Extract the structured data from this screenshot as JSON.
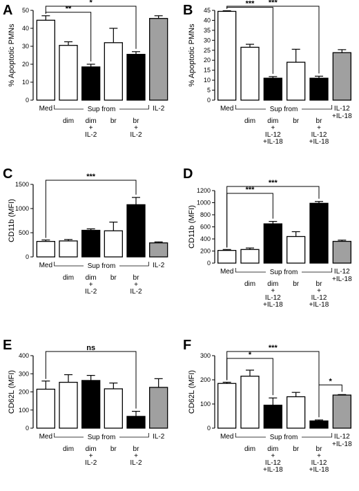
{
  "colors": {
    "white": "#ffffff",
    "black": "#000000",
    "gray": "#a0a0a0"
  },
  "chart_data": [
    {
      "type": "bar",
      "panel": "A",
      "ylabel": "% Apoptotic PMNs",
      "ylim": [
        0,
        50
      ],
      "yticks": [
        0,
        10,
        20,
        30,
        40,
        50
      ],
      "values": [
        44.5,
        30.5,
        18.5,
        32,
        25.5,
        45.5
      ],
      "errors": [
        2.5,
        2.0,
        1.5,
        8.0,
        1.5,
        1.5
      ],
      "fills": [
        "white",
        "white",
        "black",
        "white",
        "black",
        "gray"
      ],
      "labels": {
        "med": "Med",
        "sup": "Sup from",
        "end": [
          "IL-2"
        ],
        "sub": [
          [
            "dim"
          ],
          [
            "dim",
            "+",
            "IL-2"
          ],
          [
            "br"
          ],
          [
            "br",
            "+",
            "IL-2"
          ]
        ]
      },
      "brackets": [
        {
          "from": 0,
          "to": 2,
          "label": "**"
        },
        {
          "from": 0,
          "to": 4,
          "label": "*"
        }
      ]
    },
    {
      "type": "bar",
      "panel": "B",
      "ylabel": "% Apoptotic PMNs",
      "ylim": [
        0,
        45
      ],
      "yticks": [
        0,
        5,
        10,
        15,
        20,
        25,
        30,
        35,
        40,
        45
      ],
      "values": [
        44.5,
        26.5,
        11,
        19,
        11,
        23.8
      ],
      "errors": [
        0.3,
        1.5,
        0.8,
        6.5,
        1.0,
        1.5
      ],
      "fills": [
        "white",
        "white",
        "black",
        "white",
        "black",
        "gray"
      ],
      "labels": {
        "med": "Med",
        "sup": "Sup from",
        "end": [
          "IL-12",
          "+IL-18"
        ],
        "sub": [
          [
            "dim"
          ],
          [
            "dim",
            "+",
            "IL-12",
            "+IL-18"
          ],
          [
            "br"
          ],
          [
            "br",
            "+",
            "IL-12",
            "+IL-18"
          ]
        ]
      },
      "brackets": [
        {
          "from": 0,
          "to": 2,
          "label": "***"
        },
        {
          "from": 0,
          "to": 4,
          "label": "***"
        }
      ]
    },
    {
      "type": "bar",
      "panel": "C",
      "ylabel": "CD11b (MFI)",
      "ylim": [
        0,
        1500
      ],
      "yticks": [
        0,
        500,
        1000,
        1500
      ],
      "values": [
        320,
        330,
        550,
        540,
        1080,
        290
      ],
      "errors": [
        30,
        30,
        30,
        180,
        150,
        20
      ],
      "fills": [
        "white",
        "white",
        "black",
        "white",
        "black",
        "gray"
      ],
      "labels": {
        "med": "Med",
        "sup": "Sup from",
        "end": [
          "IL-2"
        ],
        "sub": [
          [
            "dim"
          ],
          [
            "dim",
            "+",
            "IL-2"
          ],
          [
            "br"
          ],
          [
            "br",
            "+",
            "IL-2"
          ]
        ]
      },
      "brackets": [
        {
          "from": 0,
          "to": 4,
          "label": "***"
        }
      ]
    },
    {
      "type": "bar",
      "panel": "D",
      "ylabel": "CD11b (MFI)",
      "ylim": [
        0,
        1200
      ],
      "yticks": [
        0,
        200,
        400,
        600,
        800,
        1000,
        1200
      ],
      "values": [
        210,
        225,
        650,
        440,
        990,
        360
      ],
      "errors": [
        15,
        25,
        40,
        80,
        30,
        20
      ],
      "fills": [
        "white",
        "white",
        "black",
        "white",
        "black",
        "gray"
      ],
      "labels": {
        "med": "Med",
        "sup": "Sup from",
        "end": [
          "IL-12",
          "+IL-18"
        ],
        "sub": [
          [
            "dim"
          ],
          [
            "dim",
            "+",
            "IL-12",
            "+IL-18"
          ],
          [
            "br"
          ],
          [
            "br",
            "+",
            "IL-12",
            "+IL-18"
          ]
        ]
      },
      "brackets": [
        {
          "from": 0,
          "to": 2,
          "label": "***"
        },
        {
          "from": 0,
          "to": 4,
          "label": "***"
        }
      ]
    },
    {
      "type": "bar",
      "panel": "E",
      "ylabel": "CD62L (MFI)",
      "ylim": [
        0,
        400
      ],
      "yticks": [
        0,
        100,
        200,
        300,
        400
      ],
      "values": [
        215,
        253,
        263,
        217,
        65,
        225
      ],
      "errors": [
        45,
        42,
        28,
        32,
        28,
        48
      ],
      "fills": [
        "white",
        "white",
        "black",
        "white",
        "black",
        "gray"
      ],
      "labels": {
        "med": "Med",
        "sup": "Sup from",
        "end": [
          "IL-2"
        ],
        "sub": [
          [
            "dim"
          ],
          [
            "dim",
            "+",
            "IL-2"
          ],
          [
            "br"
          ],
          [
            "br",
            "+",
            "IL-2"
          ]
        ]
      },
      "brackets": [
        {
          "from": 0,
          "to": 4,
          "label": "ns"
        }
      ]
    },
    {
      "type": "bar",
      "panel": "F",
      "ylabel": "CD62L (MFI)",
      "ylim": [
        0,
        300
      ],
      "yticks": [
        0,
        100,
        200,
        300
      ],
      "values": [
        185,
        215,
        95,
        130,
        30,
        137
      ],
      "errors": [
        5,
        25,
        30,
        18,
        4,
        2
      ],
      "fills": [
        "white",
        "white",
        "black",
        "white",
        "black",
        "gray"
      ],
      "labels": {
        "med": "Med",
        "sup": "Sup from",
        "end": [
          "IL-12",
          "+IL-18"
        ],
        "sub": [
          [
            "dim"
          ],
          [
            "dim",
            "+",
            "IL-12",
            "+IL-18"
          ],
          [
            "br"
          ],
          [
            "br",
            "+",
            "IL-12",
            "+IL-18"
          ]
        ]
      },
      "brackets": [
        {
          "from": 0,
          "to": 2,
          "label": "*"
        },
        {
          "from": 0,
          "to": 4,
          "label": "***"
        },
        {
          "from": 4,
          "to": 5,
          "label": "*"
        }
      ]
    }
  ]
}
